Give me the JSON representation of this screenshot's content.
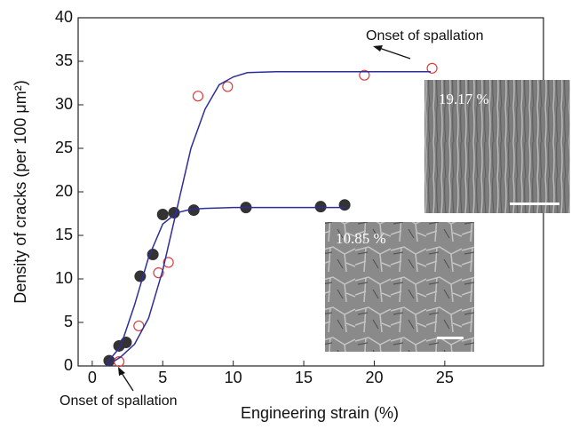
{
  "chart_data": {
    "type": "scatter",
    "xlabel": "Engineering strain (%)",
    "ylabel": "Density of cracks (per 100 μm²)",
    "xlim": [
      -1,
      32
    ],
    "ylim": [
      0,
      40
    ],
    "xticks": [
      0,
      5,
      10,
      15,
      20,
      25
    ],
    "yticks": [
      0,
      5,
      10,
      15,
      20,
      25,
      30,
      35,
      40
    ],
    "series": [
      {
        "type": "scatter",
        "marker": "filled",
        "color": "#333333",
        "x": [
          1.2,
          1.9,
          2.4,
          3.4,
          4.3,
          5.0,
          5.8,
          7.2,
          10.9,
          16.2,
          17.9
        ],
        "values": [
          0.6,
          2.3,
          2.7,
          10.3,
          12.8,
          17.4,
          17.6,
          17.9,
          18.2,
          18.3,
          18.5
        ]
      },
      {
        "type": "scatter",
        "marker": "open",
        "color": "#e03a3a",
        "x": [
          1.9,
          3.3,
          4.7,
          5.4,
          7.5,
          9.6,
          19.3,
          24.1
        ],
        "values": [
          0.5,
          4.6,
          10.7,
          11.9,
          31.0,
          32.1,
          33.4,
          34.2
        ]
      },
      {
        "type": "line",
        "color": "#2e2e9a",
        "x": [
          1,
          2,
          3,
          4,
          5,
          6,
          7,
          8,
          10,
          12,
          18
        ],
        "values": [
          0.3,
          2.2,
          7,
          12.5,
          16.3,
          17.6,
          18,
          18.1,
          18.2,
          18.2,
          18.2
        ]
      },
      {
        "type": "line",
        "color": "#2e2e9a",
        "x": [
          1,
          2,
          3,
          4,
          5,
          6,
          7,
          8,
          9,
          10,
          11,
          13,
          18,
          24
        ],
        "values": [
          0,
          1,
          2.5,
          5.5,
          11,
          18,
          25,
          29.5,
          32.3,
          33.2,
          33.7,
          33.8,
          33.8,
          33.8
        ]
      }
    ],
    "annotations": [
      "Onset of spallation",
      "Onset of spallation"
    ],
    "insets": [
      {
        "label": "19.17 %"
      },
      {
        "label": "10.85  %"
      }
    ]
  }
}
